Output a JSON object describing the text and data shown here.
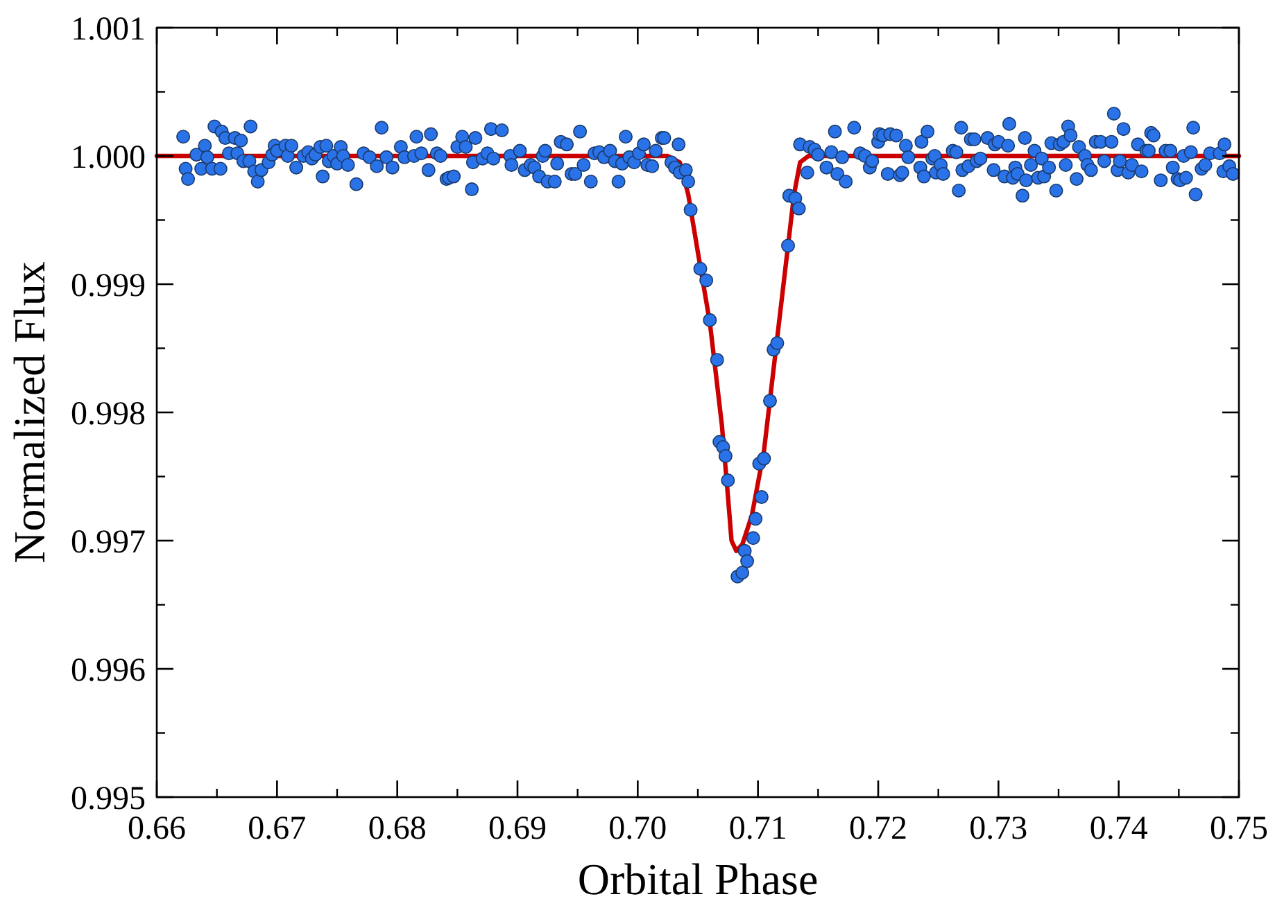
{
  "chart_data": {
    "type": "scatter",
    "xlabel": "Orbital Phase",
    "ylabel": "Normalized Flux",
    "xlim": [
      0.66,
      0.75
    ],
    "ylim": [
      0.995,
      1.001
    ],
    "xticks": [
      {
        "value": 0.66,
        "label": "0.66"
      },
      {
        "value": 0.67,
        "label": "0.67"
      },
      {
        "value": 0.68,
        "label": "0.68"
      },
      {
        "value": 0.69,
        "label": "0.69"
      },
      {
        "value": 0.7,
        "label": "0.70"
      },
      {
        "value": 0.71,
        "label": "0.71"
      },
      {
        "value": 0.72,
        "label": "0.72"
      },
      {
        "value": 0.73,
        "label": "0.73"
      },
      {
        "value": 0.74,
        "label": "0.74"
      },
      {
        "value": 0.75,
        "label": "0.75"
      }
    ],
    "yticks": [
      {
        "value": 0.995,
        "label": "0.995"
      },
      {
        "value": 0.996,
        "label": "0.996"
      },
      {
        "value": 0.997,
        "label": "0.997"
      },
      {
        "value": 0.998,
        "label": "0.998"
      },
      {
        "value": 0.999,
        "label": "0.999"
      },
      {
        "value": 1.0,
        "label": "1.000"
      },
      {
        "value": 1.001,
        "label": "1.001"
      }
    ],
    "grid": false,
    "series": [
      {
        "type": "line",
        "color": "#cc0000",
        "line_style": "solid",
        "x": [
          0.66,
          0.7025,
          0.7035,
          0.7042,
          0.705,
          0.706,
          0.707,
          0.7075,
          0.7078,
          0.7082,
          0.7087,
          0.7095,
          0.7105,
          0.713,
          0.7135,
          0.7142,
          0.75
        ],
        "values": [
          1.0,
          1.0,
          0.99995,
          0.9997,
          0.99925,
          0.9987,
          0.9979,
          0.99735,
          0.997,
          0.99692,
          0.99697,
          0.9972,
          0.9977,
          0.9997,
          0.99995,
          1.0,
          1.0
        ]
      },
      {
        "color": "#2a72e8",
        "marker": "circle",
        "x": [
          0.6622,
          0.6624,
          0.6626,
          0.6633,
          0.6637,
          0.664,
          0.6642,
          0.6646,
          0.6648,
          0.6653,
          0.6654,
          0.6657,
          0.666,
          0.6665,
          0.6667,
          0.667,
          0.6672,
          0.6677,
          0.6678,
          0.6681,
          0.6684,
          0.6687,
          0.6693,
          0.6696,
          0.6698,
          0.67,
          0.6707,
          0.6709,
          0.6712,
          0.6716,
          0.6722,
          0.6726,
          0.6729,
          0.6732,
          0.6736,
          0.6738,
          0.6741,
          0.6743,
          0.6747,
          0.675,
          0.6753,
          0.6755,
          0.6759,
          0.6766,
          0.6772,
          0.6777,
          0.6783,
          0.6787,
          0.6791,
          0.6796,
          0.6803,
          0.6806,
          0.6814,
          0.6816,
          0.682,
          0.6826,
          0.6828,
          0.6833,
          0.6836,
          0.6841,
          0.6843,
          0.6847,
          0.685,
          0.6854,
          0.6857,
          0.6862,
          0.6863,
          0.6865,
          0.6871,
          0.6875,
          0.6878,
          0.688,
          0.6887,
          0.6894,
          0.6895,
          0.6902,
          0.6906,
          0.6911,
          0.6914,
          0.6918,
          0.6921,
          0.6923,
          0.6925,
          0.6931,
          0.6933,
          0.6936,
          0.6941,
          0.6945,
          0.6948,
          0.6952,
          0.6955,
          0.6961,
          0.6964,
          0.6968,
          0.6972,
          0.6977,
          0.6981,
          0.6984,
          0.6987,
          0.699,
          0.6993,
          0.6997,
          0.7001,
          0.7005,
          0.7008,
          0.7012,
          0.7015,
          0.702,
          0.7022,
          0.7028,
          0.7031,
          0.7034,
          0.7035,
          0.704,
          0.7042,
          0.7044,
          0.7052,
          0.7057,
          0.706,
          0.7066,
          0.7068,
          0.7071,
          0.7073,
          0.7075,
          0.7083,
          0.7087,
          0.7089,
          0.7091,
          0.7096,
          0.7098,
          0.7101,
          0.7103,
          0.7105,
          0.711,
          0.7113,
          0.7116,
          0.7125,
          0.7126,
          0.7131,
          0.7134,
          0.7135,
          0.7141,
          0.7143,
          0.7147,
          0.715,
          0.7157,
          0.7161,
          0.7164,
          0.7166,
          0.717,
          0.7173,
          0.718,
          0.7185,
          0.7189,
          0.7193,
          0.7195,
          0.72,
          0.7201,
          0.7204,
          0.7208,
          0.721,
          0.7215,
          0.7218,
          0.722,
          0.7223,
          0.7225,
          0.7235,
          0.7236,
          0.7238,
          0.7241,
          0.7245,
          0.7247,
          0.7248,
          0.7252,
          0.7254,
          0.7262,
          0.7265,
          0.7267,
          0.7269,
          0.727,
          0.7275,
          0.7277,
          0.728,
          0.7282,
          0.7285,
          0.7291,
          0.7296,
          0.7297,
          0.73,
          0.7305,
          0.7308,
          0.7309,
          0.7312,
          0.7314,
          0.7316,
          0.732,
          0.7322,
          0.7323,
          0.7327,
          0.733,
          0.7333,
          0.7336,
          0.7338,
          0.7342,
          0.7344,
          0.7348,
          0.7351,
          0.7354,
          0.7356,
          0.7358,
          0.736,
          0.7365,
          0.7367,
          0.7372,
          0.7374,
          0.7377,
          0.7381,
          0.7385,
          0.7388,
          0.7394,
          0.7396,
          0.7399,
          0.7401,
          0.7404,
          0.7408,
          0.7411,
          0.7416,
          0.7419,
          0.7423,
          0.7425,
          0.7427,
          0.7429,
          0.7435,
          0.7439,
          0.7443,
          0.7445,
          0.7449,
          0.7451,
          0.7454,
          0.7456,
          0.746,
          0.7462,
          0.7464,
          0.7469,
          0.7472,
          0.7476,
          0.7484,
          0.7487,
          0.7488,
          0.7492,
          0.7495
        ],
        "values": [
          1.00015,
          0.9999,
          0.99982,
          1.00001,
          0.9999,
          1.00008,
          0.99999,
          0.9999,
          1.00023,
          0.9999,
          1.00019,
          1.00014,
          1.00002,
          1.00014,
          1.00002,
          1.00012,
          0.99996,
          0.99996,
          1.00023,
          0.99988,
          0.9998,
          0.99989,
          0.99995,
          1.00001,
          1.00008,
          1.00004,
          1.00008,
          1.0,
          1.00008,
          0.99991,
          1.0,
          1.00003,
          0.99998,
          1.00001,
          1.00007,
          0.99984,
          1.00008,
          0.99996,
          1.0,
          0.99994,
          1.00007,
          1.0,
          0.99993,
          0.99978,
          1.00002,
          0.99999,
          0.99992,
          1.00022,
          0.99999,
          0.99991,
          1.00007,
          0.99999,
          1.0,
          1.00015,
          1.00002,
          0.99989,
          1.00017,
          1.00002,
          1.0,
          0.99982,
          0.99983,
          0.99984,
          1.00007,
          1.00015,
          1.00007,
          0.99974,
          0.99995,
          1.00014,
          0.99998,
          1.00002,
          1.00021,
          0.99998,
          1.0002,
          1.0,
          0.99993,
          1.00004,
          0.99989,
          0.99993,
          0.99991,
          0.99984,
          1.0,
          1.00004,
          0.9998,
          0.9998,
          0.99994,
          1.00011,
          1.00009,
          0.99986,
          0.99986,
          1.00019,
          0.99993,
          0.9998,
          1.00002,
          1.00003,
          0.99999,
          1.00004,
          0.99996,
          0.9998,
          0.99994,
          1.00015,
          0.99999,
          0.99995,
          1.00002,
          1.00009,
          0.99993,
          0.99992,
          1.00004,
          1.00014,
          1.00014,
          0.99995,
          0.99991,
          1.00009,
          0.99987,
          0.99989,
          0.9998,
          0.99958,
          0.99912,
          0.99903,
          0.99872,
          0.99841,
          0.99777,
          0.99773,
          0.99766,
          0.99747,
          0.99672,
          0.99675,
          0.99692,
          0.99684,
          0.99702,
          0.99717,
          0.9976,
          0.99734,
          0.99764,
          0.99809,
          0.99849,
          0.99854,
          0.9993,
          0.99969,
          0.99967,
          0.99959,
          1.00009,
          0.99987,
          1.00007,
          1.00005,
          1.00001,
          0.99991,
          1.00003,
          1.00019,
          0.99986,
          0.99999,
          0.9998,
          1.00022,
          1.00002,
          1.0,
          0.99991,
          0.99996,
          1.00011,
          1.00017,
          1.00016,
          0.99986,
          1.00017,
          1.00016,
          0.99985,
          0.99987,
          1.00008,
          0.99999,
          0.99991,
          1.00011,
          0.99984,
          1.00019,
          0.99998,
          1.0,
          0.99987,
          0.99993,
          0.99986,
          1.00004,
          1.00003,
          0.99973,
          1.00022,
          0.99989,
          0.99992,
          1.00013,
          1.00013,
          0.99996,
          0.99998,
          1.00014,
          0.99989,
          1.00009,
          1.00011,
          0.99984,
          1.00008,
          1.00025,
          0.99983,
          0.99991,
          0.99986,
          0.99969,
          1.00014,
          0.99981,
          0.99993,
          1.00004,
          0.99983,
          0.99998,
          0.99984,
          0.99991,
          1.0001,
          0.99973,
          1.00009,
          1.00011,
          0.99993,
          1.00023,
          1.00016,
          0.99982,
          1.00007,
          1.0,
          0.99993,
          0.99989,
          1.00011,
          1.00011,
          0.99996,
          1.00011,
          1.00033,
          0.99989,
          0.99996,
          1.00021,
          0.99987,
          0.99993,
          1.00009,
          0.99988,
          1.00004,
          1.00004,
          1.00018,
          1.00016,
          0.99981,
          1.00004,
          1.00004,
          0.99991,
          0.99982,
          0.99981,
          1.0,
          0.99983,
          1.00003,
          1.00022,
          0.9997,
          0.9999,
          0.99993,
          1.00002,
          1.00002,
          0.99988,
          1.00009,
          0.99992,
          0.99986
        ]
      }
    ]
  }
}
